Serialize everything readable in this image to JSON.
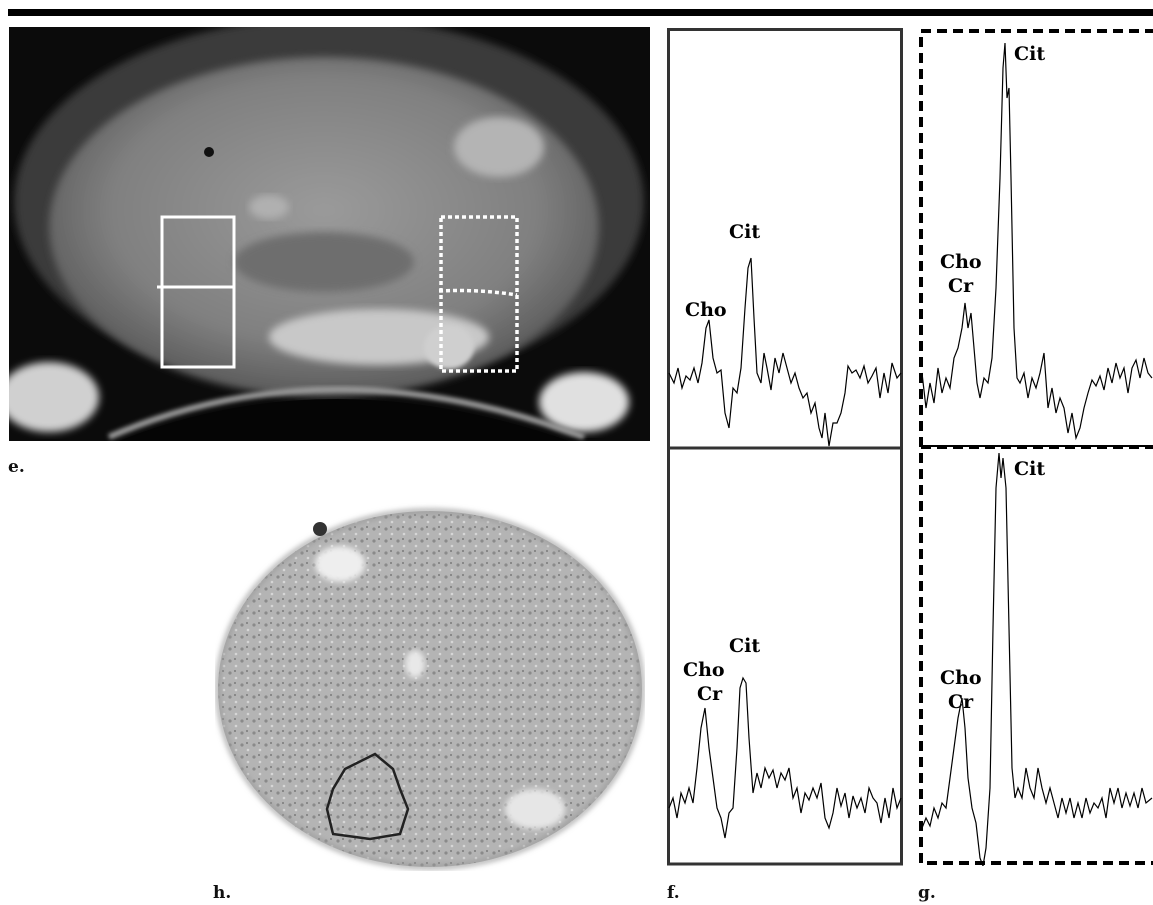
{
  "panel_labels": {
    "e": "e.",
    "h": "h.",
    "f": "f.",
    "g": "g."
  },
  "spectra": {
    "f_top": {
      "cho_label": "Cho",
      "cit_label": "Cit"
    },
    "f_bottom": {
      "cho_label": "Cho",
      "cr_label": "Cr",
      "cit_label": "Cit"
    },
    "g_top": {
      "cho_label": "Cho",
      "cr_label": "Cr",
      "cit_label": "Cit"
    },
    "g_bottom": {
      "cho_label": "Cho",
      "cr_label": "Cr",
      "cit_label": "Cit"
    }
  },
  "colors": {
    "ink": "#000000",
    "mri_dark": "#0a0a0a",
    "mri_tissue": "#8c8c8c",
    "histo_bg": "#b9b9b9"
  }
}
